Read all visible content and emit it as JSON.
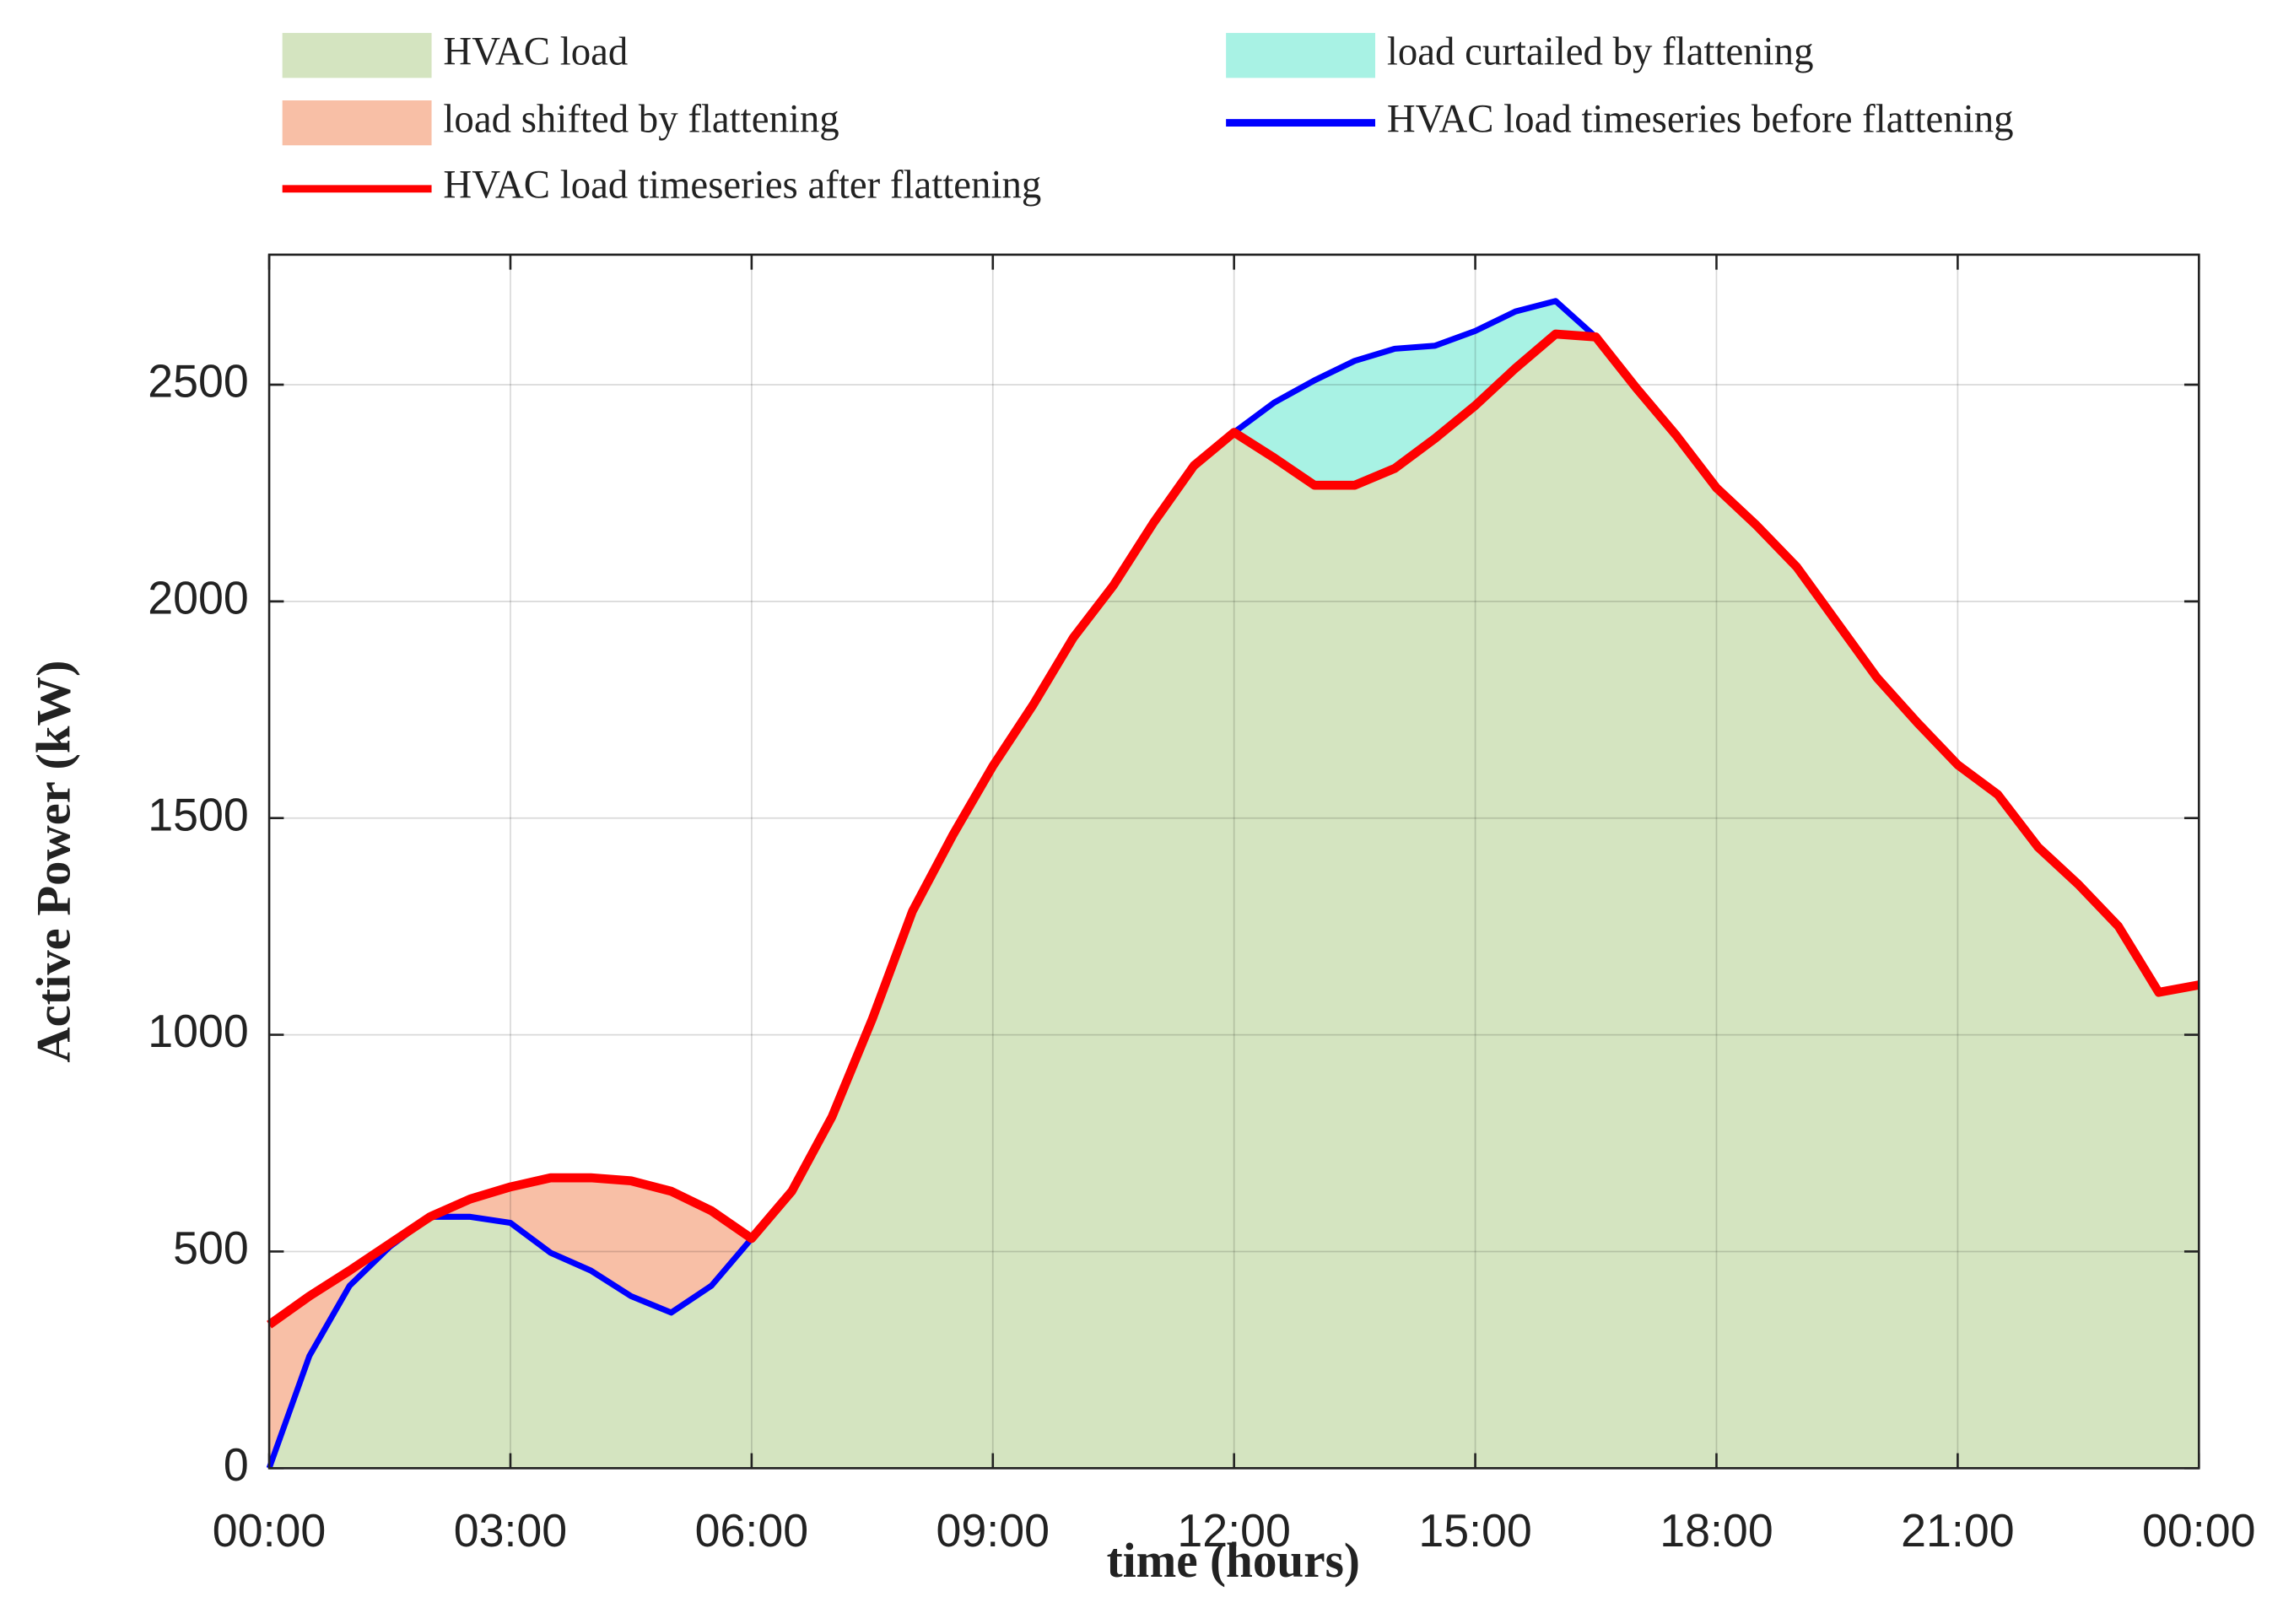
{
  "chart_data": {
    "type": "area",
    "xlabel": "time (hours)",
    "ylabel": "Active Power (kW)",
    "x": [
      0,
      0.5,
      1,
      1.5,
      2,
      2.5,
      3,
      3.5,
      4,
      4.5,
      5,
      5.5,
      6,
      6.5,
      7,
      7.5,
      8,
      8.5,
      9,
      9.5,
      10,
      10.5,
      11,
      11.5,
      12,
      12.5,
      13,
      13.5,
      14,
      14.5,
      15,
      15.5,
      16,
      16.5,
      17,
      17.5,
      18,
      18.5,
      19,
      19.5,
      20,
      20.5,
      21,
      21.5,
      22,
      22.5,
      23,
      23.5,
      24
    ],
    "series": [
      {
        "name": "HVAC load timeseries before flattening",
        "color": "#0000ff",
        "values": [
          0,
          259,
          421,
          511,
          580,
          580,
          566,
          497,
          456,
          397,
          359,
          421,
          530,
          639,
          811,
          1036,
          1285,
          1460,
          1620,
          1761,
          1916,
          2037,
          2182,
          2313,
          2390,
          2459,
          2510,
          2555,
          2583,
          2590,
          2624,
          2669,
          2693,
          2610,
          2493,
          2383,
          2262,
          2175,
          2079,
          1951,
          1823,
          1720,
          1623,
          1554,
          1433,
          1347,
          1250,
          1098,
          1115
        ]
      },
      {
        "name": "HVAC load timeseries after flattening",
        "color": "#ff0000",
        "values": [
          331,
          397,
          456,
          518,
          580,
          621,
          649,
          670,
          670,
          663,
          639,
          594,
          530,
          639,
          811,
          1036,
          1285,
          1460,
          1620,
          1761,
          1916,
          2037,
          2182,
          2313,
          2390,
          2331,
          2268,
          2268,
          2307,
          2376,
          2452,
          2538,
          2617,
          2610,
          2493,
          2383,
          2262,
          2175,
          2079,
          1951,
          1823,
          1720,
          1623,
          1554,
          1433,
          1347,
          1250,
          1098,
          1115
        ]
      }
    ],
    "areas": [
      {
        "name": "HVAC load",
        "color": "#d4e4c0"
      },
      {
        "name": "load curtailed by flattening",
        "color": "#a8f2e4"
      },
      {
        "name": "load shifted by flattening",
        "color": "#f8bfa6"
      }
    ],
    "xlim": [
      0,
      24
    ],
    "xticks": [
      {
        "value": 0,
        "label": "00:00"
      },
      {
        "value": 3,
        "label": "03:00"
      },
      {
        "value": 6,
        "label": "06:00"
      },
      {
        "value": 9,
        "label": "09:00"
      },
      {
        "value": 12,
        "label": "12:00"
      },
      {
        "value": 15,
        "label": "15:00"
      },
      {
        "value": 18,
        "label": "18:00"
      },
      {
        "value": 21,
        "label": "21:00"
      },
      {
        "value": 24,
        "label": "00:00"
      }
    ],
    "ylim": [
      0,
      2800
    ],
    "yticks": [
      0,
      500,
      1000,
      1500,
      2000,
      2500
    ],
    "grid": true
  }
}
